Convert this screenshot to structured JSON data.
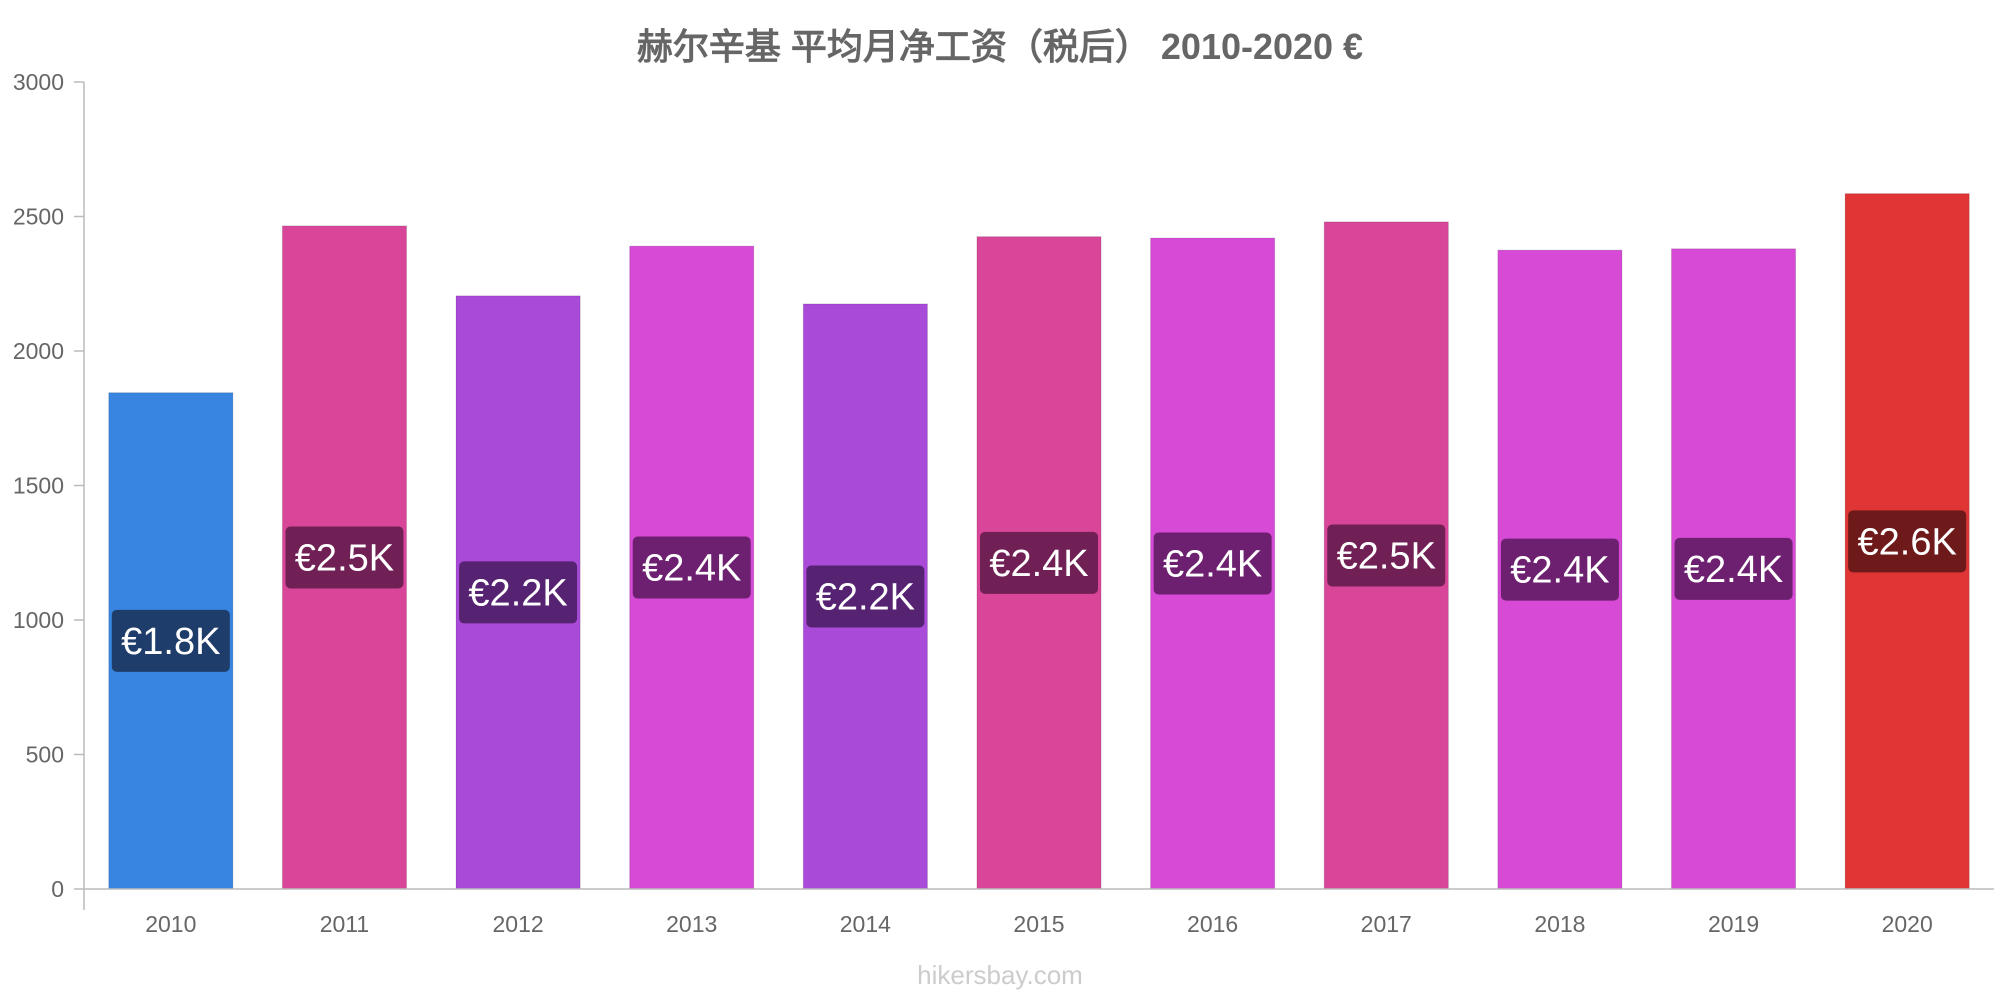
{
  "chart_data": {
    "type": "bar",
    "title": "赫尔辛基 平均月净工资（税后） 2010-2020 €",
    "xlabel": "",
    "ylabel": "",
    "ylim": [
      0,
      3000
    ],
    "yticks": [
      "0",
      "500",
      "1000",
      "1500",
      "2000",
      "2500",
      "3000"
    ],
    "grid": false,
    "categories": [
      "2010",
      "2011",
      "2012",
      "2013",
      "2014",
      "2015",
      "2016",
      "2017",
      "2018",
      "2019",
      "2020"
    ],
    "values": [
      1845,
      2465,
      2205,
      2390,
      2175,
      2425,
      2420,
      2480,
      2375,
      2380,
      2585
    ],
    "data_labels": [
      "€1.8K",
      "€2.5K",
      "€2.2K",
      "€2.4K",
      "€2.2K",
      "€2.4K",
      "€2.4K",
      "€2.5K",
      "€2.4K",
      "€2.4K",
      "€2.6K"
    ],
    "bar_colors": [
      "#3785e0",
      "#d94699",
      "#a94ad9",
      "#d64ad6",
      "#a94ad9",
      "#d94699",
      "#d64ad6",
      "#d94699",
      "#d64ad6",
      "#d64ad6",
      "#e03535"
    ],
    "label_bg_colors": [
      "#1e3d6b",
      "#702055",
      "#562272",
      "#6d2070",
      "#562272",
      "#702055",
      "#6d2070",
      "#702055",
      "#6d2070",
      "#6d2070",
      "#6f1a1a"
    ]
  },
  "watermark": "hikersbay.com"
}
